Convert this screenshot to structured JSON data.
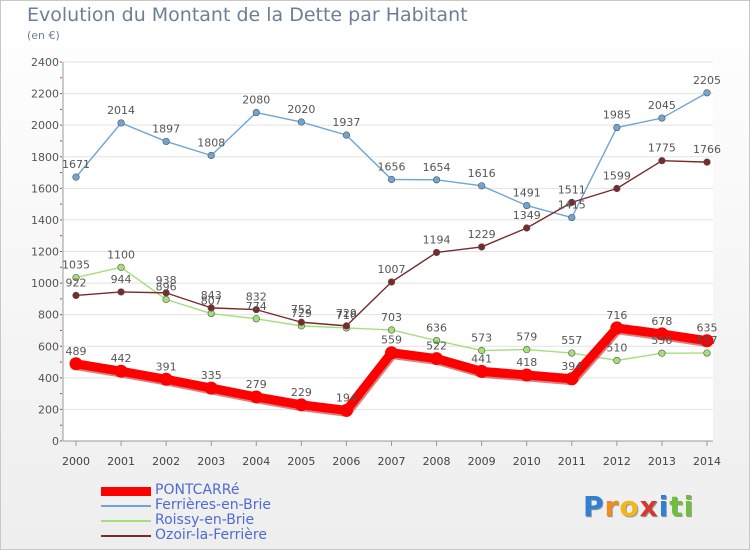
{
  "title": "Evolution du Montant de la Dette par Habitant",
  "unit": "(en €)",
  "logo": {
    "chars": [
      "P",
      "r",
      "o",
      "x",
      "i",
      "t",
      "i"
    ],
    "colors": [
      "#2f7fd3",
      "#f08c1e",
      "#f0b81e",
      "#d23a2e",
      "#2f7fd3",
      "#6fbf3a",
      "#6fbf3a"
    ]
  },
  "chart_data": {
    "type": "line",
    "title": "Evolution du Montant de la Dette par Habitant",
    "ylabel": "(en €)",
    "ylim": [
      0,
      2400
    ],
    "yticks": [
      "0",
      "200",
      "400",
      "600",
      "800",
      "1000",
      "1200",
      "1400",
      "1600",
      "1800",
      "2000",
      "2200",
      "2400"
    ],
    "grid": "horizontal",
    "legend": "bottom-left",
    "categories": [
      "2000",
      "2001",
      "2002",
      "2003",
      "2004",
      "2005",
      "2006",
      "2007",
      "2008",
      "2009",
      "2010",
      "2011",
      "2012",
      "2013",
      "2014"
    ],
    "series": [
      {
        "name": "PONTCARRé",
        "color": "#ff0000",
        "values": [
          489,
          442,
          391,
          335,
          279,
          229,
          194,
          559,
          522,
          441,
          418,
          394,
          716,
          678,
          635
        ]
      },
      {
        "name": "Ferrières-en-Brie",
        "color": "#6fa5d2",
        "values": [
          1671,
          2014,
          1897,
          1808,
          2080,
          2020,
          1937,
          1656,
          1654,
          1616,
          1491,
          1415,
          1985,
          2045,
          2205
        ]
      },
      {
        "name": "Roissy-en-Brie",
        "color": "#a3e07a",
        "values": [
          1035,
          1100,
          896,
          807,
          774,
          729,
          716,
          703,
          636,
          573,
          579,
          557,
          510,
          556,
          557
        ]
      },
      {
        "name": "Ozoir-la-Ferrière",
        "color": "#7a2a2a",
        "values": [
          922,
          944,
          938,
          843,
          832,
          752,
          729,
          1007,
          1194,
          1229,
          1349,
          1511,
          1599,
          1775,
          1766
        ]
      }
    ]
  }
}
